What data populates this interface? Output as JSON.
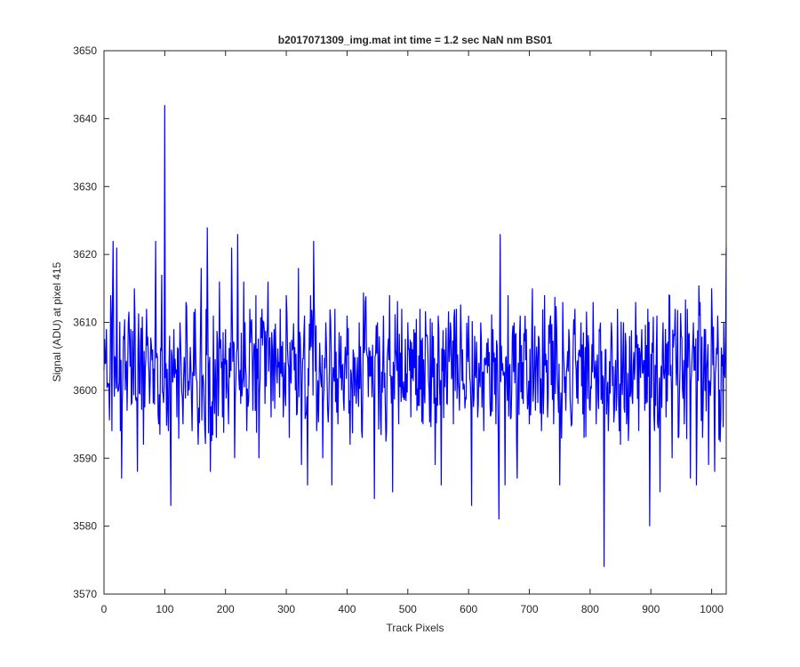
{
  "chart_data": {
    "type": "line",
    "title": "b2017071309_img.mat int time = 1.2 sec  NaN nm BS01",
    "xlabel": "Track Pixels",
    "ylabel": "Signal (ADU) at pixel 415",
    "xlim": [
      0,
      1024
    ],
    "ylim": [
      3570,
      3650
    ],
    "xticks": [
      0,
      100,
      200,
      300,
      400,
      500,
      600,
      700,
      800,
      900,
      1000
    ],
    "yticks": [
      3570,
      3580,
      3590,
      3600,
      3610,
      3620,
      3630,
      3640,
      3650
    ],
    "grid": false,
    "line_color": "#0000ff",
    "series": [
      {
        "name": "",
        "summary": {
          "mean": 3603,
          "typical_min": 3594,
          "typical_max": 3612
        },
        "values": [
          [
            0,
            3603
          ],
          [
            4,
            3609
          ],
          [
            8,
            3601
          ],
          [
            11,
            3614
          ],
          [
            13,
            3594
          ],
          [
            15,
            3622
          ],
          [
            18,
            3605
          ],
          [
            21,
            3621
          ],
          [
            24,
            3600
          ],
          [
            27,
            3594
          ],
          [
            29,
            3587
          ],
          [
            32,
            3608
          ],
          [
            35,
            3600
          ],
          [
            40,
            3610
          ],
          [
            45,
            3598
          ],
          [
            50,
            3615
          ],
          [
            55,
            3588
          ],
          [
            60,
            3607
          ],
          [
            65,
            3592
          ],
          [
            70,
            3612
          ],
          [
            75,
            3598
          ],
          [
            80,
            3606
          ],
          [
            85,
            3622
          ],
          [
            90,
            3595
          ],
          [
            95,
            3617
          ],
          [
            100,
            3642
          ],
          [
            102,
            3604
          ],
          [
            106,
            3594
          ],
          [
            110,
            3583
          ],
          [
            115,
            3609
          ],
          [
            120,
            3596
          ],
          [
            125,
            3610
          ],
          [
            130,
            3595
          ],
          [
            135,
            3613
          ],
          [
            140,
            3600
          ],
          [
            145,
            3594
          ],
          [
            150,
            3612
          ],
          [
            155,
            3592
          ],
          [
            160,
            3618
          ],
          [
            165,
            3597
          ],
          [
            170,
            3624
          ],
          [
            175,
            3588
          ],
          [
            180,
            3611
          ],
          [
            185,
            3593
          ],
          [
            190,
            3616
          ],
          [
            195,
            3596
          ],
          [
            200,
            3609
          ],
          [
            205,
            3595
          ],
          [
            210,
            3621
          ],
          [
            215,
            3590
          ],
          [
            220,
            3623
          ],
          [
            225,
            3598
          ],
          [
            230,
            3616
          ],
          [
            235,
            3594
          ],
          [
            240,
            3612
          ],
          [
            245,
            3597
          ],
          [
            250,
            3614
          ],
          [
            255,
            3590
          ],
          [
            260,
            3612
          ],
          [
            265,
            3598
          ],
          [
            270,
            3616
          ],
          [
            275,
            3596
          ],
          [
            280,
            3609
          ],
          [
            285,
            3601
          ],
          [
            290,
            3612
          ],
          [
            295,
            3596
          ],
          [
            300,
            3614
          ],
          [
            305,
            3593
          ],
          [
            310,
            3606
          ],
          [
            315,
            3600
          ],
          [
            320,
            3618
          ],
          [
            325,
            3589
          ],
          [
            330,
            3611
          ],
          [
            335,
            3586
          ],
          [
            340,
            3614
          ],
          [
            345,
            3622
          ],
          [
            350,
            3594
          ],
          [
            355,
            3607
          ],
          [
            360,
            3590
          ],
          [
            365,
            3610
          ],
          [
            370,
            3598
          ],
          [
            375,
            3586
          ],
          [
            380,
            3612
          ],
          [
            385,
            3595
          ],
          [
            390,
            3608
          ],
          [
            395,
            3597
          ],
          [
            400,
            3611
          ],
          [
            405,
            3592
          ],
          [
            410,
            3606
          ],
          [
            415,
            3598
          ],
          [
            420,
            3610
          ],
          [
            425,
            3593
          ],
          [
            430,
            3613
          ],
          [
            435,
            3599
          ],
          [
            440,
            3605
          ],
          [
            445,
            3584
          ],
          [
            450,
            3610
          ],
          [
            455,
            3596
          ],
          [
            460,
            3611
          ],
          [
            465,
            3594
          ],
          [
            470,
            3614
          ],
          [
            475,
            3585
          ],
          [
            480,
            3606
          ],
          [
            485,
            3595
          ],
          [
            490,
            3612
          ],
          [
            495,
            3599
          ],
          [
            500,
            3610
          ],
          [
            505,
            3596
          ],
          [
            510,
            3609
          ],
          [
            515,
            3597
          ],
          [
            520,
            3612
          ],
          [
            525,
            3595
          ],
          [
            530,
            3608
          ],
          [
            535,
            3600
          ],
          [
            540,
            3610
          ],
          [
            545,
            3589
          ],
          [
            550,
            3611
          ],
          [
            555,
            3586
          ],
          [
            560,
            3606
          ],
          [
            565,
            3598
          ],
          [
            570,
            3610
          ],
          [
            575,
            3595
          ],
          [
            580,
            3612
          ],
          [
            585,
            3597
          ],
          [
            590,
            3606
          ],
          [
            595,
            3599
          ],
          [
            600,
            3611
          ],
          [
            605,
            3583
          ],
          [
            610,
            3608
          ],
          [
            615,
            3596
          ],
          [
            620,
            3610
          ],
          [
            625,
            3594
          ],
          [
            630,
            3607
          ],
          [
            635,
            3599
          ],
          [
            640,
            3609
          ],
          [
            645,
            3595
          ],
          [
            650,
            3581
          ],
          [
            652,
            3623
          ],
          [
            656,
            3604
          ],
          [
            660,
            3586
          ],
          [
            665,
            3614
          ],
          [
            670,
            3596
          ],
          [
            675,
            3610
          ],
          [
            680,
            3587
          ],
          [
            685,
            3611
          ],
          [
            690,
            3598
          ],
          [
            695,
            3609
          ],
          [
            700,
            3595
          ],
          [
            705,
            3615
          ],
          [
            710,
            3597
          ],
          [
            715,
            3608
          ],
          [
            720,
            3594
          ],
          [
            725,
            3614
          ],
          [
            730,
            3596
          ],
          [
            735,
            3611
          ],
          [
            740,
            3595
          ],
          [
            745,
            3609
          ],
          [
            750,
            3586
          ],
          [
            755,
            3613
          ],
          [
            760,
            3597
          ],
          [
            765,
            3609
          ],
          [
            770,
            3595
          ],
          [
            775,
            3612
          ],
          [
            780,
            3598
          ],
          [
            785,
            3610
          ],
          [
            790,
            3593
          ],
          [
            795,
            3607
          ],
          [
            800,
            3597
          ],
          [
            805,
            3613
          ],
          [
            810,
            3595
          ],
          [
            815,
            3609
          ],
          [
            820,
            3598
          ],
          [
            823,
            3574
          ],
          [
            826,
            3606
          ],
          [
            830,
            3594
          ],
          [
            835,
            3610
          ],
          [
            840,
            3597
          ],
          [
            845,
            3612
          ],
          [
            850,
            3592
          ],
          [
            855,
            3610
          ],
          [
            860,
            3595
          ],
          [
            865,
            3608
          ],
          [
            870,
            3598
          ],
          [
            875,
            3613
          ],
          [
            880,
            3594
          ],
          [
            885,
            3609
          ],
          [
            890,
            3597
          ],
          [
            895,
            3612
          ],
          [
            898,
            3580
          ],
          [
            902,
            3607
          ],
          [
            906,
            3594
          ],
          [
            910,
            3611
          ],
          [
            915,
            3585
          ],
          [
            920,
            3610
          ],
          [
            925,
            3596
          ],
          [
            930,
            3614
          ],
          [
            935,
            3590
          ],
          [
            940,
            3612
          ],
          [
            945,
            3593
          ],
          [
            950,
            3608
          ],
          [
            955,
            3595
          ],
          [
            960,
            3612
          ],
          [
            965,
            3587
          ],
          [
            970,
            3610
          ],
          [
            975,
            3586
          ],
          [
            980,
            3611
          ],
          [
            985,
            3593
          ],
          [
            990,
            3609
          ],
          [
            995,
            3589
          ],
          [
            1000,
            3615
          ],
          [
            1005,
            3588
          ],
          [
            1010,
            3611
          ],
          [
            1015,
            3596
          ],
          [
            1020,
            3610
          ],
          [
            1024,
            3621
          ]
        ]
      }
    ]
  }
}
